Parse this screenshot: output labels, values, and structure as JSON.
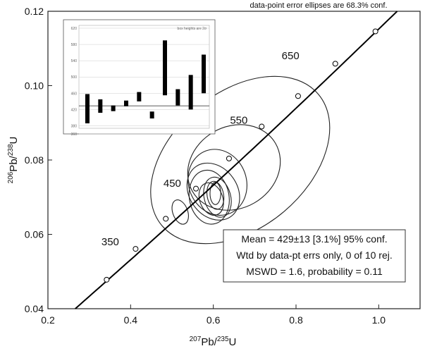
{
  "chart_data": {
    "type": "concordia",
    "annotation": "data-point error ellipses are 68.3% conf.",
    "xlabel": {
      "pre": "207",
      "base1": "Pb/",
      "sup2": "235",
      "base2": "U"
    },
    "ylabel": {
      "pre": "206",
      "base1": "Pb/",
      "sup2": "238",
      "base2": "U"
    },
    "xlim": [
      0.2,
      1.1
    ],
    "ylim": [
      0.04,
      0.12
    ],
    "xticks": [
      0.2,
      0.4,
      0.6,
      0.8,
      1.0
    ],
    "xtick_labels": [
      "0.2",
      "0.4",
      "0.6",
      "0.8",
      "1.0"
    ],
    "yticks": [
      0.04,
      0.06,
      0.08,
      0.1,
      0.12
    ],
    "ytick_labels": [
      "0.04",
      "0.06",
      "0.08",
      "0.10",
      "0.12"
    ],
    "concordia_points": [
      {
        "x": 0.342,
        "y": 0.0478
      },
      {
        "x": 0.412,
        "y": 0.0561
      },
      {
        "x": 0.485,
        "y": 0.0642
      },
      {
        "x": 0.558,
        "y": 0.0723
      },
      {
        "x": 0.638,
        "y": 0.0804
      },
      {
        "x": 0.717,
        "y": 0.089
      },
      {
        "x": 0.805,
        "y": 0.0972
      },
      {
        "x": 0.895,
        "y": 0.1059
      },
      {
        "x": 0.992,
        "y": 0.1146
      }
    ],
    "age_labels": [
      {
        "label": "350",
        "x": 0.372,
        "y": 0.0571
      },
      {
        "label": "450",
        "x": 0.522,
        "y": 0.0728
      },
      {
        "label": "550",
        "x": 0.683,
        "y": 0.0898
      },
      {
        "label": "650",
        "x": 0.808,
        "y": 0.1071
      }
    ],
    "ellipses": [
      {
        "cx": 0.665,
        "cy": 0.08,
        "rx": 0.247,
        "ry": 0.0182,
        "angle": 40
      },
      {
        "cx": 0.65,
        "cy": 0.078,
        "rx": 0.116,
        "ry": 0.011,
        "angle": 30
      },
      {
        "cx": 0.61,
        "cy": 0.074,
        "rx": 0.07,
        "ry": 0.009,
        "angle": 20
      },
      {
        "cx": 0.6,
        "cy": 0.0715,
        "rx": 0.058,
        "ry": 0.0082,
        "angle": 35
      },
      {
        "cx": 0.59,
        "cy": 0.07,
        "rx": 0.048,
        "ry": 0.0073,
        "angle": 10
      },
      {
        "cx": 0.61,
        "cy": 0.07,
        "rx": 0.032,
        "ry": 0.0055,
        "angle": 15
      },
      {
        "cx": 0.595,
        "cy": 0.0695,
        "rx": 0.028,
        "ry": 0.0045,
        "angle": 20
      },
      {
        "cx": 0.605,
        "cy": 0.0705,
        "rx": 0.02,
        "ry": 0.0038,
        "angle": 10
      },
      {
        "cx": 0.605,
        "cy": 0.071,
        "rx": 0.013,
        "ry": 0.003,
        "angle": 0
      },
      {
        "cx": 0.52,
        "cy": 0.066,
        "rx": 0.018,
        "ry": 0.0034,
        "angle": 20
      }
    ],
    "stats": [
      "Mean = 429±13  [3.1%]  95% conf.",
      "Wtd by data-pt errs only, 0 of 10 rej.",
      "MSWD = 1.6, probability = 0.11"
    ],
    "inset": {
      "title": "box heights are 2σ",
      "ylim": [
        360,
        620
      ],
      "yticks": [
        360,
        380,
        420,
        460,
        500,
        540,
        580,
        620
      ],
      "ytick_labels": [
        "360",
        "380",
        "420",
        "460",
        "500",
        "540",
        "580",
        "620"
      ],
      "mean": 429,
      "boxes": [
        {
          "low": 386,
          "high": 458
        },
        {
          "low": 412,
          "high": 445
        },
        {
          "low": 416,
          "high": 430
        },
        {
          "low": 428,
          "high": 442
        },
        {
          "low": 440,
          "high": 463
        },
        {
          "low": 398,
          "high": 415
        },
        {
          "low": 455,
          "high": 590
        },
        {
          "low": 430,
          "high": 470
        },
        {
          "low": 420,
          "high": 505
        },
        {
          "low": 460,
          "high": 555
        }
      ]
    }
  }
}
